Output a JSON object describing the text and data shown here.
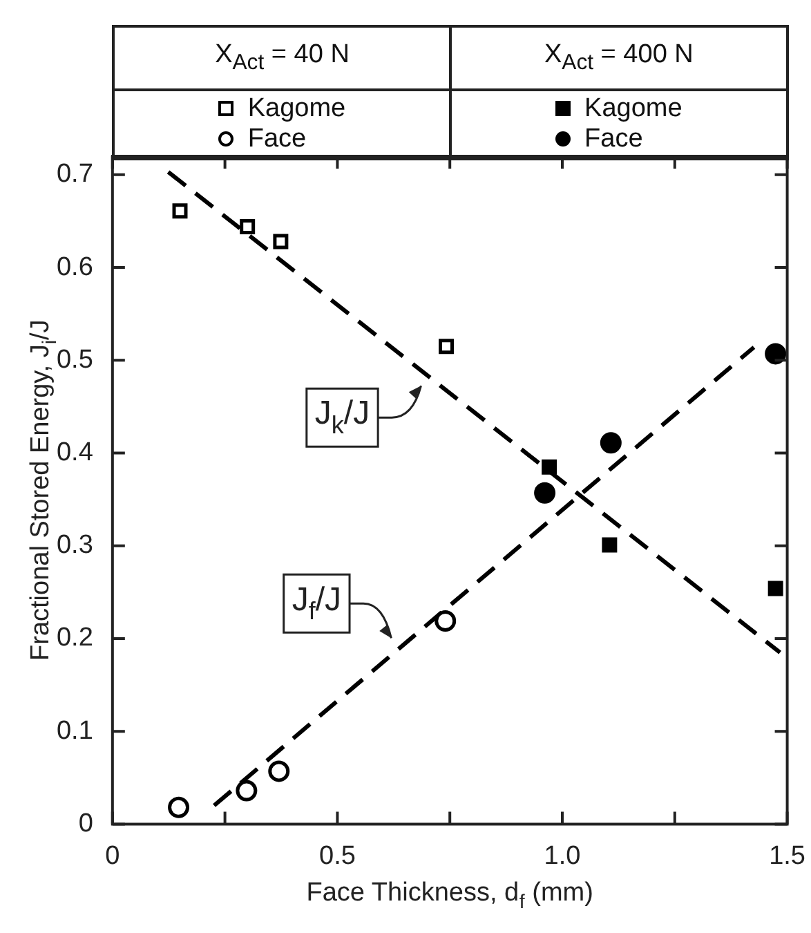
{
  "chart_data": {
    "type": "scatter",
    "xlabel": "Face Thickness, d$_{f}$ (mm)",
    "ylabel": "Fractional Stored Energy, J$_{i}$/J",
    "annotations": [
      "X$_{Act}$ = 40 N",
      "X$_{Act}$ = 400 N",
      {
        "text": "J$_{k}$/J",
        "x": 0.689,
        "y": 0.48
      },
      {
        "text": "J$_{f}$/J",
        "x": 0.632,
        "y": 0.193
      }
    ],
    "series": [
      {
        "name": "Kagome",
        "color": "#ffffff",
        "marker": "square",
        "x": [
          0.15,
          0.3,
          0.374,
          0.742
        ],
        "values": [
          0.661,
          0.644,
          0.628,
          0.515
        ]
      },
      {
        "name": "Face",
        "color": "#ffffff",
        "marker": "circle",
        "x": [
          0.147,
          0.298,
          0.37,
          0.74
        ],
        "values": [
          0.018,
          0.036,
          0.057,
          0.219
        ]
      },
      {
        "name": "Kagome",
        "color": "#000000",
        "marker": "square",
        "x": [
          0.971,
          1.105,
          1.474
        ],
        "values": [
          0.385,
          0.301,
          0.254
        ]
      },
      {
        "name": "Face",
        "color": "#000000",
        "marker": "circle",
        "x": [
          0.961,
          1.108,
          1.474
        ],
        "values": [
          0.357,
          0.411,
          0.507
        ]
      },
      {
        "type": "line",
        "color": "#000000",
        "line_style": "dashed",
        "marker": "none",
        "x": [
          0.124,
          1.484
        ],
        "values": [
          0.703,
          0.185
        ]
      },
      {
        "type": "line",
        "color": "#000000",
        "line_style": "dashed",
        "marker": "none",
        "x": [
          0.226,
          1.426
        ],
        "values": [
          0.02,
          0.514
        ]
      }
    ],
    "xlim": [
      0,
      1.5
    ],
    "xticks": [
      0,
      {
        "value": 0.25,
        "label": null
      },
      0.5,
      {
        "value": 0.75,
        "label": null
      },
      {
        "value": 1,
        "label": "1.0"
      },
      {
        "value": 1.25,
        "label": null
      },
      1.5
    ],
    "ylim": [
      0,
      0.72
    ],
    "yticks": [
      0,
      0.1,
      0.2,
      0.3,
      0.4,
      0.5,
      0.6,
      0.7
    ],
    "grid": false,
    "legend": "top"
  }
}
